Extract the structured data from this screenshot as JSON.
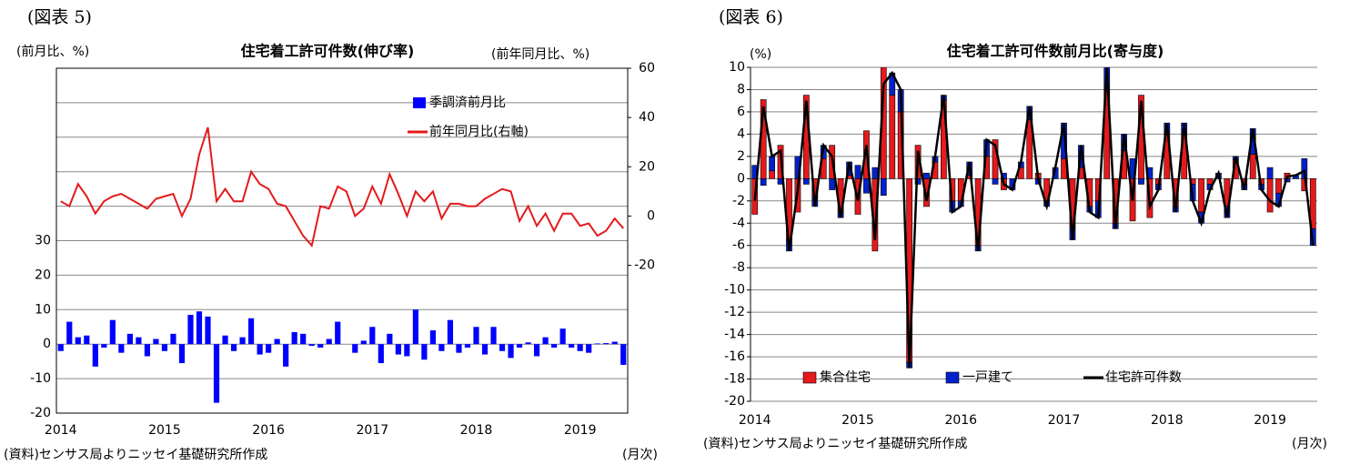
{
  "chart_data": [
    {
      "type": "combo",
      "label": "(図表 5)",
      "title": "住宅着工許可件数(伸び率)",
      "ylabel": "(前月比、%)",
      "y2label": "(前年同月比、%)",
      "source": "(資料)センサス局よりニッセイ基礎研究所作成",
      "xlabel": "(月次)",
      "categories": [
        "2014",
        null,
        null,
        null,
        null,
        null,
        null,
        null,
        null,
        null,
        null,
        null,
        "2015",
        null,
        null,
        null,
        null,
        null,
        null,
        null,
        null,
        null,
        null,
        null,
        "2016",
        null,
        null,
        null,
        null,
        null,
        null,
        null,
        null,
        null,
        null,
        null,
        "2017",
        null,
        null,
        null,
        null,
        null,
        null,
        null,
        null,
        null,
        null,
        null,
        "2018",
        null,
        null,
        null,
        null,
        null,
        null,
        null,
        null,
        null,
        null,
        null,
        "2019",
        null,
        null,
        null,
        null,
        null
      ],
      "ylim": [
        -20,
        80
      ],
      "yticks": [
        -20,
        -10,
        0,
        10,
        20,
        30
      ],
      "y2lim": [
        -80,
        60
      ],
      "y2ticks": [
        -20,
        0,
        20,
        40,
        60
      ],
      "grid": true,
      "legend": "upper right",
      "series": [
        {
          "name": "季調済前月比",
          "type": "bar",
          "color": "#0000ff",
          "values": [
            -2,
            6.5,
            2,
            2.5,
            -6.5,
            -1,
            7,
            -2.5,
            3,
            2,
            -3.5,
            1.5,
            -2,
            3,
            -5.5,
            8.5,
            9.5,
            8,
            -17,
            2.5,
            -2,
            2,
            7.5,
            -3,
            -2.5,
            1.5,
            -6.5,
            3.5,
            3,
            -0.5,
            -1,
            1.5,
            6.5,
            0,
            -2.5,
            1,
            5,
            -5.5,
            3,
            -3,
            -3.5,
            10,
            -4.5,
            4,
            -2,
            7,
            -2.5,
            -1,
            5,
            -3,
            5,
            -2,
            -4,
            -1,
            0.5,
            -3.5,
            2,
            -1,
            4.5,
            -1,
            -2,
            -2.5,
            0.2,
            0.3,
            0.7,
            -6
          ]
        },
        {
          "name": "前年同月比(右軸)",
          "type": "line",
          "axis": "y2",
          "color": "#e41a1c",
          "values": [
            6,
            4,
            13,
            8,
            1,
            6,
            8,
            9,
            7,
            5,
            3,
            7,
            8,
            9,
            0,
            7,
            25,
            36,
            6,
            11,
            6,
            6,
            18,
            13,
            11,
            5,
            4,
            -2,
            -8,
            -12,
            4,
            3,
            12,
            10,
            0,
            3,
            12,
            5,
            17,
            9,
            0,
            10,
            6,
            10,
            -1,
            5,
            5,
            4,
            4,
            7,
            9,
            11,
            10,
            -2,
            4,
            -4,
            1,
            -6,
            1,
            1,
            -4,
            -3,
            -8,
            -6,
            -1,
            -5
          ]
        }
      ]
    },
    {
      "type": "combo",
      "label": "(図表 6)",
      "title": "住宅着工許可件数前月比(寄与度)",
      "ylabel": "(%)",
      "source": "(資料)センサス局よりニッセイ基礎研究所作成",
      "xlabel": "(月次)",
      "categories": [
        "2014",
        null,
        null,
        null,
        null,
        null,
        null,
        null,
        null,
        null,
        null,
        null,
        "2015",
        null,
        null,
        null,
        null,
        null,
        null,
        null,
        null,
        null,
        null,
        null,
        "2016",
        null,
        null,
        null,
        null,
        null,
        null,
        null,
        null,
        null,
        null,
        null,
        "2017",
        null,
        null,
        null,
        null,
        null,
        null,
        null,
        null,
        null,
        null,
        null,
        "2018",
        null,
        null,
        null,
        null,
        null,
        null,
        null,
        null,
        null,
        null,
        null,
        "2019",
        null,
        null,
        null,
        null,
        null
      ],
      "ylim": [
        -20,
        10
      ],
      "yticks": [
        -20,
        -18,
        -16,
        -14,
        -12,
        -10,
        -8,
        -6,
        -4,
        -2,
        0,
        2,
        4,
        6,
        8,
        10
      ],
      "grid": true,
      "stacked": true,
      "legend": "lower center",
      "series": [
        {
          "name": "集合住宅",
          "type": "bar",
          "color": "#e41a1c",
          "values": [
            -3.2,
            7.1,
            0.7,
            3,
            -5.5,
            -3,
            7.5,
            -1.7,
            1.8,
            3,
            -3,
            0.3,
            -3.2,
            4.3,
            -6.5,
            10,
            7.5,
            6,
            -16.5,
            3,
            -2.5,
            1.5,
            7,
            -2,
            -2,
            0.3,
            -6,
            2,
            3.5,
            -1,
            0,
            1,
            5.3,
            0.5,
            -2,
            0,
            1.8,
            -4.3,
            1,
            -2.5,
            -2,
            8,
            -4,
            2.5,
            -3.8,
            7.5,
            -3.5,
            -0.5,
            4,
            -2.5,
            4,
            -0.5,
            -3,
            -0.5,
            0,
            -2.5,
            1.7,
            -0.5,
            2.2,
            -0.5,
            -3,
            -1.3,
            0.5,
            0,
            -1.1,
            -4.5
          ]
        },
        {
          "name": "一戸建て",
          "type": "bar",
          "color": "#0022cc",
          "values": [
            1.2,
            -0.6,
            1.3,
            -0.5,
            -1,
            2,
            -0.5,
            -0.8,
            1.2,
            -1,
            -0.5,
            1.2,
            1.2,
            -1.3,
            1,
            -1.5,
            2,
            2,
            -0.5,
            -0.5,
            0.5,
            0.5,
            0.5,
            -1,
            -0.5,
            1.2,
            -0.5,
            1.5,
            -0.5,
            0.5,
            -1,
            0.5,
            1.2,
            -0.5,
            -0.5,
            1,
            3.2,
            -1.2,
            2,
            -0.5,
            -1.5,
            2,
            -0.5,
            1.5,
            1.8,
            -0.5,
            1,
            -0.5,
            1,
            -0.5,
            1,
            -1.5,
            -1,
            -0.5,
            0.5,
            -1,
            0.3,
            -0.5,
            2.3,
            -0.5,
            1,
            -1.2,
            -0.3,
            0.3,
            1.8,
            -1.5
          ]
        },
        {
          "name": "住宅許可件数",
          "type": "line",
          "color": "#000000",
          "values": [
            -2,
            6.5,
            2,
            2.5,
            -6.5,
            -1,
            7,
            -2.5,
            3,
            2,
            -3.5,
            1.5,
            -2,
            3,
            -5.5,
            8.5,
            9.5,
            8,
            -17,
            2.5,
            -2,
            2,
            7.5,
            -3,
            -2.5,
            1.5,
            -6.5,
            3.5,
            3,
            -0.5,
            -1,
            1.5,
            6.5,
            0,
            -2.5,
            1,
            5,
            -5.5,
            3,
            -3,
            -3.5,
            10,
            -4.5,
            4,
            -2,
            7,
            -2.5,
            -1,
            5,
            -3,
            5,
            -2,
            -4,
            -1,
            0.5,
            -3.5,
            2,
            -1,
            4.5,
            -1,
            -2,
            -2.5,
            0.2,
            0.3,
            0.7,
            -6
          ]
        }
      ]
    }
  ]
}
